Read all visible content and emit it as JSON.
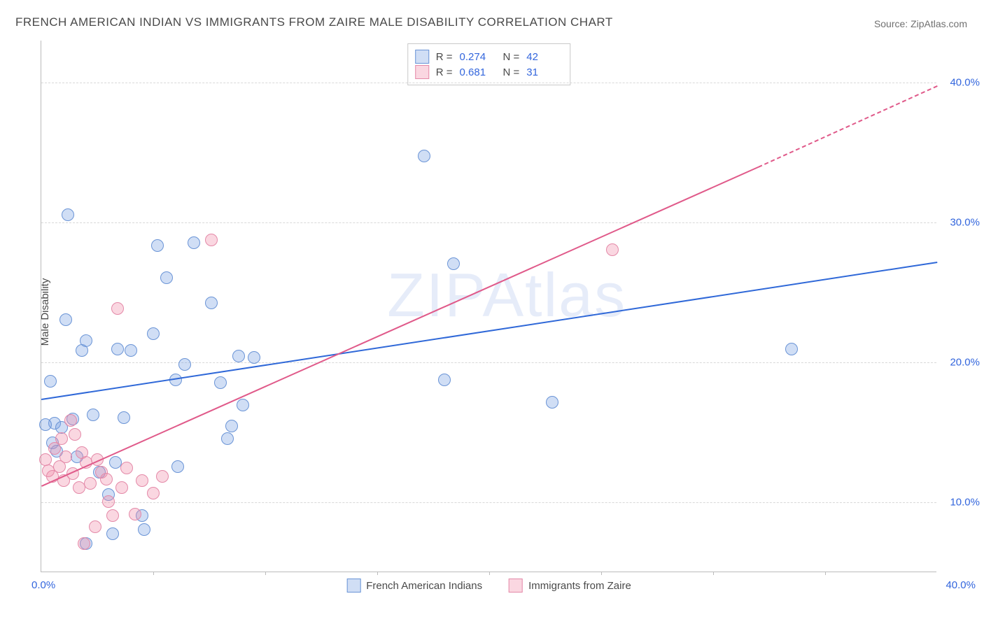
{
  "title": "FRENCH AMERICAN INDIAN VS IMMIGRANTS FROM ZAIRE MALE DISABILITY CORRELATION CHART",
  "source": "Source: ZipAtlas.com",
  "watermark": "ZIPAtlas",
  "ylabel": "Male Disability",
  "chart": {
    "type": "scatter",
    "xlim": [
      0,
      40
    ],
    "ylim": [
      5,
      43
    ],
    "xtick_step": 5,
    "yticks": [
      10,
      20,
      30,
      40
    ],
    "ytick_labels": [
      "10.0%",
      "20.0%",
      "30.0%",
      "40.0%"
    ],
    "x_zero_label": "0.0%",
    "x_max_label": "40.0%",
    "background_color": "#ffffff",
    "grid_color": "#d8d8d8",
    "axis_color": "#bbbbbb",
    "tick_label_color": "#3366dd",
    "marker_size": 18,
    "marker_stroke": 1.2,
    "line_width": 2.2
  },
  "series": {
    "a": {
      "label": "French American Indians",
      "color_fill": "rgba(120,160,225,0.35)",
      "color_stroke": "#6a94d6",
      "line_color": "#2f68d8",
      "R_label": "R =",
      "R": "0.274",
      "N_label": "N =",
      "N": "42",
      "trend": {
        "x1": 0,
        "y1": 17.4,
        "x2": 40,
        "y2": 27.2
      },
      "points": [
        [
          0.4,
          18.6
        ],
        [
          0.5,
          14.2
        ],
        [
          0.6,
          15.6
        ],
        [
          0.9,
          15.3
        ],
        [
          1.1,
          23.0
        ],
        [
          1.2,
          30.5
        ],
        [
          1.4,
          15.9
        ],
        [
          1.8,
          20.8
        ],
        [
          2.0,
          7.0
        ],
        [
          2.3,
          16.2
        ],
        [
          2.6,
          12.1
        ],
        [
          3.2,
          7.7
        ],
        [
          3.3,
          12.8
        ],
        [
          3.4,
          20.9
        ],
        [
          3.7,
          16.0
        ],
        [
          4.0,
          20.8
        ],
        [
          4.5,
          9.0
        ],
        [
          5.2,
          28.3
        ],
        [
          5.6,
          26.0
        ],
        [
          6.0,
          18.7
        ],
        [
          6.1,
          12.5
        ],
        [
          6.4,
          19.8
        ],
        [
          6.8,
          28.5
        ],
        [
          7.6,
          24.2
        ],
        [
          8.0,
          18.5
        ],
        [
          8.3,
          14.5
        ],
        [
          8.5,
          15.4
        ],
        [
          8.8,
          20.4
        ],
        [
          9.0,
          16.9
        ],
        [
          9.5,
          20.3
        ],
        [
          17.1,
          34.7
        ],
        [
          18.0,
          18.7
        ],
        [
          18.4,
          27.0
        ],
        [
          22.8,
          17.1
        ],
        [
          33.5,
          20.9
        ],
        [
          0.2,
          15.5
        ],
        [
          0.7,
          13.6
        ],
        [
          1.6,
          13.2
        ],
        [
          2.0,
          21.5
        ],
        [
          3.0,
          10.5
        ],
        [
          4.6,
          8.0
        ],
        [
          5.0,
          22.0
        ]
      ]
    },
    "b": {
      "label": "Immigrants from Zaire",
      "color_fill": "rgba(240,140,170,0.35)",
      "color_stroke": "#e489a8",
      "line_color": "#e05a8a",
      "R_label": "R =",
      "R": "0.681",
      "N_label": "N =",
      "N": "31",
      "trend": {
        "x1": 0,
        "y1": 11.2,
        "x2": 32,
        "y2": 34.0,
        "dash_x2": 40,
        "dash_y2": 39.8
      },
      "points": [
        [
          0.2,
          13.0
        ],
        [
          0.3,
          12.2
        ],
        [
          0.5,
          11.8
        ],
        [
          0.6,
          13.8
        ],
        [
          0.8,
          12.5
        ],
        [
          0.9,
          14.5
        ],
        [
          1.0,
          11.5
        ],
        [
          1.1,
          13.2
        ],
        [
          1.4,
          12.0
        ],
        [
          1.5,
          14.8
        ],
        [
          1.7,
          11.0
        ],
        [
          1.8,
          13.5
        ],
        [
          1.9,
          7.0
        ],
        [
          2.0,
          12.8
        ],
        [
          2.2,
          11.3
        ],
        [
          2.4,
          8.2
        ],
        [
          2.5,
          13.0
        ],
        [
          2.7,
          12.1
        ],
        [
          2.9,
          11.6
        ],
        [
          3.0,
          10.0
        ],
        [
          3.2,
          9.0
        ],
        [
          3.4,
          23.8
        ],
        [
          3.6,
          11.0
        ],
        [
          3.8,
          12.4
        ],
        [
          4.2,
          9.1
        ],
        [
          4.5,
          11.5
        ],
        [
          5.0,
          10.6
        ],
        [
          5.4,
          11.8
        ],
        [
          7.6,
          28.7
        ],
        [
          25.5,
          28.0
        ],
        [
          1.3,
          15.8
        ]
      ]
    }
  }
}
